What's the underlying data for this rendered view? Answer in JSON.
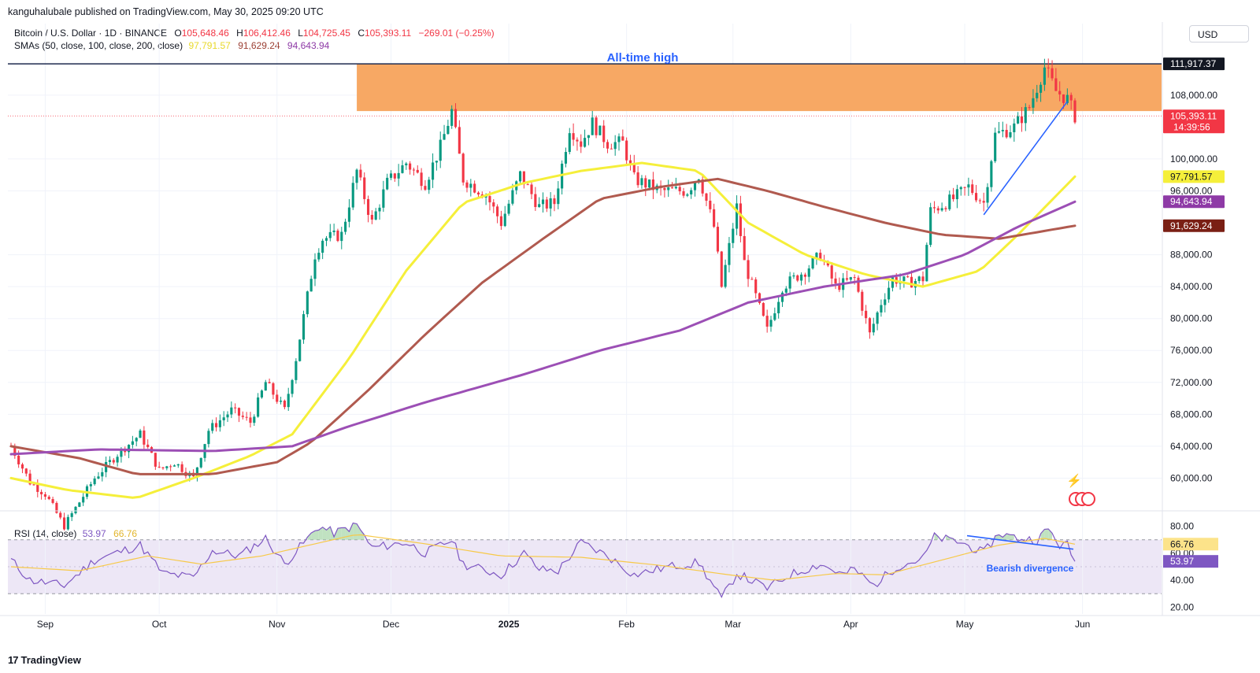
{
  "publisher": "kanguhalubale published on TradingView.com, May 30, 2025 09:20 UTC",
  "symbol": {
    "name": "Bitcoin / U.S. Dollar · 1D · BINANCE",
    "o_label": "O",
    "o": "105,648.46",
    "h_label": "H",
    "h": "106,412.46",
    "l_label": "L",
    "l": "104,725.45",
    "c_label": "C",
    "c": "105,393.11",
    "change": "−269.01 (−0.25%)"
  },
  "sma_legend": {
    "label": "SMAs (50, close, 100, close, 200, close)",
    "v50": "97,791.57",
    "v100": "91,629.24",
    "v200": "94,643.94"
  },
  "currency_button": "USD",
  "rsi_legend": {
    "label": "RSI (14, close)",
    "rsi": "53.97",
    "ma": "66.76"
  },
  "footer": {
    "brand": "TradingView",
    "logo": "17"
  },
  "annotations": {
    "ath": "All-time high",
    "divergence": "Bearish divergence"
  },
  "colors": {
    "up": "#089981",
    "down": "#f23645",
    "sma50": "#f5ef3a",
    "sma100": "#b05a4f",
    "sma200": "#9c4fb5",
    "zone": "#f7a35c",
    "ath_line": "#1e2a4f",
    "trendline": "#2962ff",
    "rsi": "#7e57c2",
    "rsi_ma": "#f7c948",
    "rsi_band": "#ede7f6",
    "text_blue": "#2962ff"
  },
  "price_labels": {
    "ath": "111,917.37",
    "last": "105,393.11",
    "countdown": "14:39:56",
    "sma50": "97,791.57",
    "sma200": "94,643.94",
    "sma100": "91,629.24",
    "rsi_ma": "66.76",
    "rsi": "53.97",
    "rsi_hidden": "60.00"
  },
  "chart_data": {
    "type": "candlestick",
    "title": "Bitcoin / U.S. Dollar · 1D · BINANCE",
    "ylim": [
      56000,
      114000
    ],
    "y_ticks": [
      "60,000.00",
      "64,000.00",
      "68,000.00",
      "72,000.00",
      "76,000.00",
      "80,000.00",
      "84,000.00",
      "88,000.00",
      "96,000.00",
      "100,000.00",
      "108,000.00"
    ],
    "x_ticks": [
      "Sep",
      "Oct",
      "Nov",
      "Dec",
      "2025",
      "Feb",
      "Mar",
      "Apr",
      "May",
      "Jun"
    ],
    "date_range": [
      "2024-08-23",
      "2025-05-30"
    ],
    "ath_value": 111917.37,
    "zone": {
      "low": 106000,
      "high": 111917,
      "from": "2024-11-22",
      "to": "2025-05-30"
    },
    "close_anchors": [
      [
        "2024-08-23",
        64000
      ],
      [
        "2024-08-28",
        59500
      ],
      [
        "2024-09-01",
        58000
      ],
      [
        "2024-09-06",
        54000
      ],
      [
        "2024-09-10",
        57000
      ],
      [
        "2024-09-14",
        60000
      ],
      [
        "2024-09-20",
        63000
      ],
      [
        "2024-09-26",
        65500
      ],
      [
        "2024-10-01",
        61000
      ],
      [
        "2024-10-05",
        62000
      ],
      [
        "2024-10-10",
        60000
      ],
      [
        "2024-10-14",
        66000
      ],
      [
        "2024-10-20",
        68500
      ],
      [
        "2024-10-25",
        67000
      ],
      [
        "2024-10-29",
        72000
      ],
      [
        "2024-11-03",
        68500
      ],
      [
        "2024-11-06",
        75000
      ],
      [
        "2024-11-11",
        88000
      ],
      [
        "2024-11-13",
        90000
      ],
      [
        "2024-11-18",
        90500
      ],
      [
        "2024-11-22",
        98500
      ],
      [
        "2024-11-26",
        92000
      ],
      [
        "2024-11-30",
        97000
      ],
      [
        "2024-12-05",
        99500
      ],
      [
        "2024-12-10",
        97000
      ],
      [
        "2024-12-14",
        101500
      ],
      [
        "2024-12-17",
        106000
      ],
      [
        "2024-12-20",
        97500
      ],
      [
        "2024-12-26",
        95500
      ],
      [
        "2024-12-30",
        92000
      ],
      [
        "2025-01-04",
        98000
      ],
      [
        "2025-01-09",
        94000
      ],
      [
        "2025-01-13",
        94500
      ],
      [
        "2025-01-17",
        104000
      ],
      [
        "2025-01-20",
        102000
      ],
      [
        "2025-01-23",
        104500
      ],
      [
        "2025-01-27",
        102000
      ],
      [
        "2025-01-31",
        102000
      ],
      [
        "2025-02-03",
        97500
      ],
      [
        "2025-02-10",
        96000
      ],
      [
        "2025-02-17",
        96000
      ],
      [
        "2025-02-20",
        98000
      ],
      [
        "2025-02-24",
        91500
      ],
      [
        "2025-02-26",
        84000
      ],
      [
        "2025-03-02",
        94000
      ],
      [
        "2025-03-04",
        87000
      ],
      [
        "2025-03-10",
        78500
      ],
      [
        "2025-03-14",
        84000
      ],
      [
        "2025-03-20",
        86000
      ],
      [
        "2025-03-24",
        88000
      ],
      [
        "2025-03-28",
        84000
      ],
      [
        "2025-04-02",
        85000
      ],
      [
        "2025-04-06",
        78000
      ],
      [
        "2025-04-09",
        82000
      ],
      [
        "2025-04-12",
        85000
      ],
      [
        "2025-04-16",
        84500
      ],
      [
        "2025-04-20",
        85000
      ],
      [
        "2025-04-22",
        93500
      ],
      [
        "2025-04-28",
        95000
      ],
      [
        "2025-05-02",
        96500
      ],
      [
        "2025-05-06",
        94500
      ],
      [
        "2025-05-09",
        103000
      ],
      [
        "2025-05-14",
        104000
      ],
      [
        "2025-05-18",
        106500
      ],
      [
        "2025-05-22",
        111500
      ],
      [
        "2025-05-25",
        108500
      ],
      [
        "2025-05-28",
        107500
      ],
      [
        "2025-05-30",
        105393
      ]
    ],
    "series": [
      {
        "name": "SMA 50",
        "color": "#f5ef3a",
        "points": [
          [
            "2024-08-23",
            60000
          ],
          [
            "2024-09-07",
            58500
          ],
          [
            "2024-09-25",
            57500
          ],
          [
            "2024-10-10",
            60000
          ],
          [
            "2024-10-25",
            62800
          ],
          [
            "2024-11-05",
            65500
          ],
          [
            "2024-11-20",
            75000
          ],
          [
            "2024-12-05",
            86000
          ],
          [
            "2024-12-20",
            94500
          ],
          [
            "2025-01-05",
            97000
          ],
          [
            "2025-01-20",
            98500
          ],
          [
            "2025-02-05",
            99500
          ],
          [
            "2025-02-20",
            98500
          ],
          [
            "2025-03-05",
            92000
          ],
          [
            "2025-03-20",
            88000
          ],
          [
            "2025-04-05",
            85500
          ],
          [
            "2025-04-20",
            84000
          ],
          [
            "2025-05-05",
            86000
          ],
          [
            "2025-05-15",
            90500
          ],
          [
            "2025-05-30",
            97791.57
          ]
        ]
      },
      {
        "name": "SMA 100",
        "color": "#b05a4f",
        "points": [
          [
            "2024-08-23",
            64000
          ],
          [
            "2024-09-10",
            62500
          ],
          [
            "2024-09-25",
            60500
          ],
          [
            "2024-10-15",
            60500
          ],
          [
            "2024-11-01",
            62000
          ],
          [
            "2024-11-10",
            64500
          ],
          [
            "2024-11-25",
            71000
          ],
          [
            "2024-12-10",
            78000
          ],
          [
            "2024-12-25",
            84500
          ],
          [
            "2025-01-10",
            90000
          ],
          [
            "2025-01-25",
            95000
          ],
          [
            "2025-02-10",
            96500
          ],
          [
            "2025-02-25",
            97500
          ],
          [
            "2025-03-10",
            96000
          ],
          [
            "2025-03-25",
            94000
          ],
          [
            "2025-04-10",
            92000
          ],
          [
            "2025-04-25",
            90500
          ],
          [
            "2025-05-10",
            90000
          ],
          [
            "2025-05-30",
            91629.24
          ]
        ]
      },
      {
        "name": "SMA 200",
        "color": "#9c4fb5",
        "points": [
          [
            "2024-08-23",
            63000
          ],
          [
            "2024-09-15",
            63600
          ],
          [
            "2024-10-15",
            63400
          ],
          [
            "2024-11-05",
            64000
          ],
          [
            "2024-11-20",
            66500
          ],
          [
            "2024-12-10",
            69500
          ],
          [
            "2025-01-05",
            73000
          ],
          [
            "2025-01-25",
            76000
          ],
          [
            "2025-02-15",
            78500
          ],
          [
            "2025-03-05",
            82000
          ],
          [
            "2025-03-25",
            84000
          ],
          [
            "2025-04-15",
            85500
          ],
          [
            "2025-05-01",
            88000
          ],
          [
            "2025-05-15",
            91500
          ],
          [
            "2025-05-30",
            94643.94
          ]
        ]
      }
    ],
    "rsi": {
      "ylim": [
        15,
        85
      ],
      "levels": [
        30,
        70
      ],
      "y_ticks": [
        "80.00",
        "40.00",
        "20.00"
      ],
      "value": 53.97,
      "ma_value": 66.76,
      "anchors": [
        [
          "2024-08-23",
          55
        ],
        [
          "2024-08-28",
          40
        ],
        [
          "2024-09-06",
          36
        ],
        [
          "2024-09-14",
          55
        ],
        [
          "2024-09-26",
          66
        ],
        [
          "2024-10-02",
          45
        ],
        [
          "2024-10-10",
          42
        ],
        [
          "2024-10-15",
          62
        ],
        [
          "2024-10-22",
          58
        ],
        [
          "2024-10-29",
          71
        ],
        [
          "2024-11-03",
          52
        ],
        [
          "2024-11-12",
          80
        ],
        [
          "2024-11-16",
          75
        ],
        [
          "2024-11-22",
          81
        ],
        [
          "2024-11-26",
          64
        ],
        [
          "2024-12-05",
          68
        ],
        [
          "2024-12-10",
          60
        ],
        [
          "2024-12-17",
          70
        ],
        [
          "2024-12-20",
          52
        ],
        [
          "2024-12-30",
          44
        ],
        [
          "2025-01-05",
          60
        ],
        [
          "2025-01-09",
          48
        ],
        [
          "2025-01-14",
          47
        ],
        [
          "2025-01-20",
          68
        ],
        [
          "2025-01-27",
          58
        ],
        [
          "2025-02-03",
          44
        ],
        [
          "2025-02-12",
          50
        ],
        [
          "2025-02-20",
          53
        ],
        [
          "2025-02-26",
          26
        ],
        [
          "2025-03-02",
          45
        ],
        [
          "2025-03-10",
          34
        ],
        [
          "2025-03-16",
          44
        ],
        [
          "2025-03-24",
          52
        ],
        [
          "2025-03-30",
          44
        ],
        [
          "2025-04-02",
          48
        ],
        [
          "2025-04-07",
          36
        ],
        [
          "2025-04-13",
          50
        ],
        [
          "2025-04-20",
          56
        ],
        [
          "2025-04-23",
          72
        ],
        [
          "2025-04-30",
          68
        ],
        [
          "2025-05-06",
          60
        ],
        [
          "2025-05-10",
          75
        ],
        [
          "2025-05-15",
          71
        ],
        [
          "2025-05-20",
          70
        ],
        [
          "2025-05-23",
          78
        ],
        [
          "2025-05-26",
          66
        ],
        [
          "2025-05-28",
          66
        ],
        [
          "2025-05-30",
          53.97
        ]
      ],
      "ma_anchors": [
        [
          "2024-08-23",
          50
        ],
        [
          "2024-09-10",
          47
        ],
        [
          "2024-09-28",
          58
        ],
        [
          "2024-10-12",
          52
        ],
        [
          "2024-10-28",
          58
        ],
        [
          "2024-11-22",
          74
        ],
        [
          "2024-12-10",
          67
        ],
        [
          "2024-12-30",
          58
        ],
        [
          "2025-01-20",
          57
        ],
        [
          "2025-02-10",
          51
        ],
        [
          "2025-02-28",
          44
        ],
        [
          "2025-03-12",
          40
        ],
        [
          "2025-03-28",
          45
        ],
        [
          "2025-04-10",
          44
        ],
        [
          "2025-04-25",
          55
        ],
        [
          "2025-05-10",
          66
        ],
        [
          "2025-05-22",
          71
        ],
        [
          "2025-05-30",
          66.76
        ]
      ]
    }
  }
}
